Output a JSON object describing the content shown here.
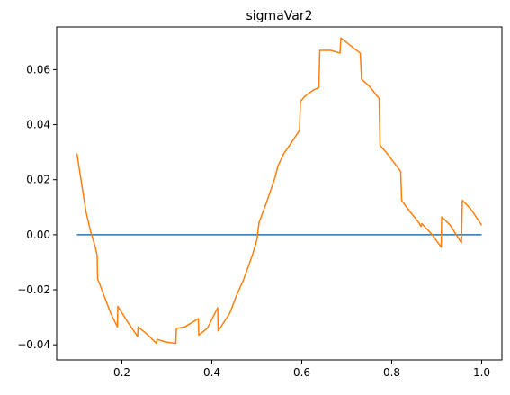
{
  "chart_data": {
    "type": "line",
    "title": "sigmaVar2",
    "xlabel": "",
    "ylabel": "",
    "xlim": [
      0.055,
      1.045
    ],
    "ylim": [
      -0.0455,
      0.0755
    ],
    "x_ticks": [
      0.2,
      0.4,
      0.6,
      0.8,
      1.0
    ],
    "x_tick_labels": [
      "0.2",
      "0.4",
      "0.6",
      "0.8",
      "1.0"
    ],
    "y_ticks": [
      -0.04,
      -0.02,
      0.0,
      0.02,
      0.04,
      0.06
    ],
    "y_tick_labels": [
      "−0.04",
      "−0.02",
      "0.00",
      "0.02",
      "0.04",
      "0.06"
    ],
    "grid": false,
    "legend": "none",
    "series": [
      {
        "color": "#1f77b4",
        "x": [
          0.1,
          1.0
        ],
        "y": [
          0.0,
          0.0
        ]
      },
      {
        "color": "#ff7f0e",
        "x": [
          0.1,
          0.12,
          0.13,
          0.14,
          0.145,
          0.146,
          0.16,
          0.175,
          0.19,
          0.191,
          0.21,
          0.235,
          0.236,
          0.255,
          0.277,
          0.278,
          0.298,
          0.32,
          0.321,
          0.34,
          0.37,
          0.371,
          0.39,
          0.413,
          0.414,
          0.44,
          0.455,
          0.47,
          0.49,
          0.5,
          0.505,
          0.52,
          0.54,
          0.547,
          0.56,
          0.575,
          0.595,
          0.597,
          0.608,
          0.625,
          0.638,
          0.64,
          0.665,
          0.685,
          0.687,
          0.695,
          0.71,
          0.73,
          0.733,
          0.75,
          0.772,
          0.774,
          0.79,
          0.82,
          0.822,
          0.84,
          0.86,
          0.865,
          0.867,
          0.87,
          0.89,
          0.91,
          0.911,
          0.93,
          0.955,
          0.957,
          0.975,
          1.0
        ],
        "y": [
          0.0295,
          0.0085,
          0.0015,
          -0.004,
          -0.0075,
          -0.016,
          -0.022,
          -0.0285,
          -0.0335,
          -0.026,
          -0.031,
          -0.037,
          -0.0335,
          -0.036,
          -0.0395,
          -0.038,
          -0.039,
          -0.0395,
          -0.034,
          -0.0335,
          -0.0305,
          -0.0365,
          -0.034,
          -0.0265,
          -0.035,
          -0.0285,
          -0.022,
          -0.0165,
          -0.0075,
          -0.002,
          0.0045,
          0.011,
          0.0205,
          0.025,
          0.0295,
          0.033,
          0.038,
          0.0485,
          0.0505,
          0.0525,
          0.0535,
          0.067,
          0.067,
          0.066,
          0.0715,
          0.0705,
          0.0685,
          0.066,
          0.0565,
          0.054,
          0.0495,
          0.0325,
          0.0295,
          0.023,
          0.0125,
          0.0085,
          0.0045,
          0.003,
          0.004,
          0.0035,
          0.0,
          -0.0045,
          0.0065,
          0.0035,
          -0.003,
          0.0125,
          0.0095,
          0.0035
        ]
      }
    ]
  }
}
